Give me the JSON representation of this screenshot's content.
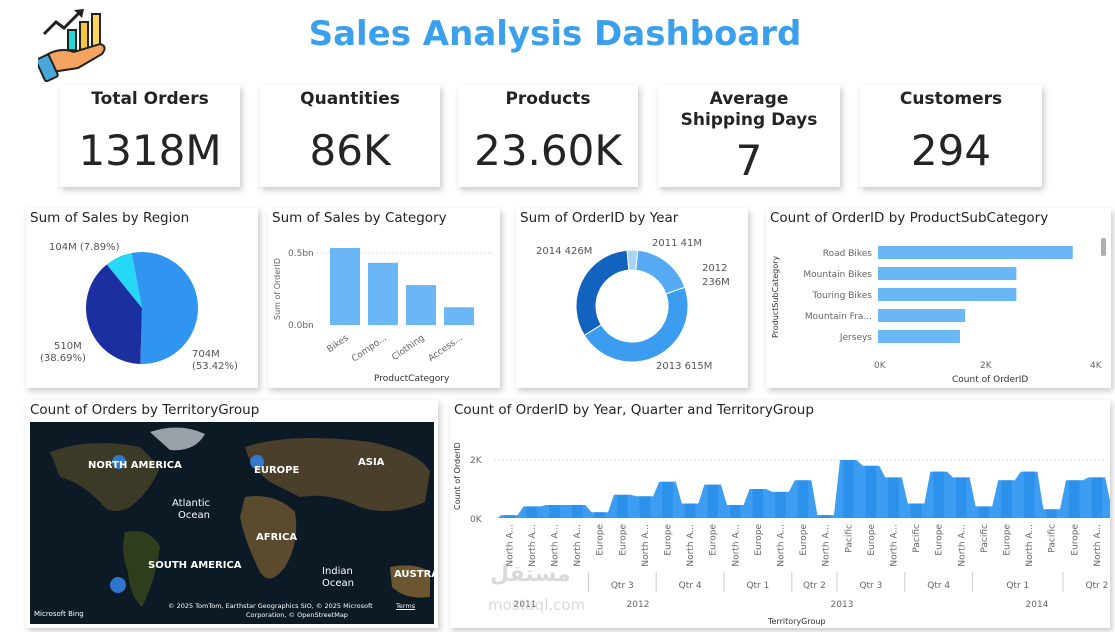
{
  "header": {
    "title": "Sales Analysis Dashboard",
    "title_color": "#3aa0ee",
    "logo_icon": "hand-growth-chart-icon"
  },
  "kpis": [
    {
      "label": "Total Orders",
      "value": "1318M"
    },
    {
      "label": "Quantities",
      "value": "86K"
    },
    {
      "label": "Products",
      "value": "23.60K"
    },
    {
      "label": "Average Shipping Days",
      "value": "7"
    },
    {
      "label": "Customers",
      "value": "294"
    }
  ],
  "region": {
    "title": "Sum of Sales by Region",
    "labels": {
      "a": "104M (7.89%)",
      "b1": "510M",
      "b2": "(38.69%)",
      "c1": "704M",
      "c2": "(53.42%)"
    }
  },
  "category": {
    "title": "Sum of Sales by Category",
    "ylabel": "Sum of OrderID",
    "xlabel": "ProductCategory",
    "ticks": [
      "0.5bn",
      "0.0bn"
    ]
  },
  "year": {
    "title": "Sum of OrderID by Year",
    "labels": {
      "y2014": "2014 426M",
      "y2011": "2011 41M",
      "y2012a": "2012",
      "y2012b": "236M",
      "y2013": "2013 615M"
    }
  },
  "subcat": {
    "title": "Count of OrderID by ProductSubCategory",
    "ylabel": "ProductSubCategory",
    "xlabel": "Count of OrderID",
    "ticks": [
      "0K",
      "2K",
      "4K"
    ]
  },
  "map": {
    "title": "Count of Orders by TerritoryGroup",
    "labels": {
      "na": "NORTH AMERICA",
      "eu": "EUROPE",
      "as": "ASIA",
      "ao1": "Atlantic",
      "ao2": "Ocean",
      "af": "AFRICA",
      "sa": "SOUTH AMERICA",
      "io1": "Indian",
      "io2": "Ocean",
      "au": "AUSTRAL",
      "bing": "Microsoft Bing",
      "credit1": "© 2025 TomTom, Earthstar Geographics SIO, © 2025 Microsoft",
      "credit2": "Corporation, © OpenStreetMap",
      "terms": "Terms"
    }
  },
  "trend": {
    "title": "Count of OrderID by Year, Quarter and TerritoryGroup",
    "ylabel": "Count of OrderID",
    "xlabel": "TerritoryGroup",
    "ticks": [
      "2K",
      "0K"
    ],
    "quarters": [
      "Qtr 3",
      "Qtr 4",
      "Qtr 1",
      "Qtr 2",
      "Qtr 3",
      "Qtr 4",
      "Qtr 1",
      "Qtr 2"
    ],
    "years": [
      "2011",
      "2012",
      "2013",
      "2014"
    ],
    "watermark1": "مستقل",
    "watermark2": "mostaql.com"
  },
  "chart_data": [
    {
      "type": "pie",
      "title": "Sum of Sales by Region",
      "labels": [
        "104M (7.89%)",
        "510M (38.69%)",
        "704M (53.42%)"
      ],
      "values": [
        104,
        510,
        704
      ],
      "colors": [
        "#25d8f5",
        "#1c2fa0",
        "#2f95f0"
      ]
    },
    {
      "type": "bar",
      "title": "Sum of Sales by Category",
      "categories": [
        "Bikes",
        "Compo...",
        "Clothing",
        "Access..."
      ],
      "values": [
        0.52,
        0.42,
        0.27,
        0.12
      ],
      "ylim": [
        0,
        0.6
      ],
      "xlabel": "ProductCategory",
      "ylabel": "Sum of OrderID",
      "color": "#6bb6f5"
    },
    {
      "type": "pie",
      "title": "Sum of OrderID by Year",
      "labels": [
        "2011",
        "2012",
        "2013",
        "2014"
      ],
      "values": [
        41,
        236,
        615,
        426
      ],
      "colors": [
        "#a9d4fa",
        "#56aaf4",
        "#3b9cf0",
        "#1262c0"
      ]
    },
    {
      "type": "bar",
      "title": "Count of OrderID by ProductSubCategory",
      "categories": [
        "Road Bikes",
        "Mountain Bikes",
        "Touring Bikes",
        "Mountain Fra...",
        "Jerseys"
      ],
      "values": [
        3.8,
        2.7,
        2.7,
        1.7,
        1.6
      ],
      "xlim": [
        0,
        4
      ],
      "xlabel": "Count of OrderID",
      "ylabel": "ProductSubCategory",
      "color": "#6bb6f5"
    },
    {
      "type": "area",
      "title": "Count of OrderID by Year, Quarter and TerritoryGroup",
      "categories": [
        "North A...",
        "North A...",
        "North A...",
        "North A...",
        "Europe",
        "Europe",
        "North A...",
        "Europe",
        "North A...",
        "Europe",
        "North A...",
        "Europe",
        "North A...",
        "Europe",
        "North A...",
        "Pacific",
        "Europe",
        "North A...",
        "Pacific",
        "Europe",
        "North A...",
        "Pacific",
        "Europe",
        "North A...",
        "Pacific",
        "Europe",
        "North A...",
        "Pacific"
      ],
      "values": [
        0.1,
        0.4,
        0.45,
        0.45,
        0.2,
        0.8,
        0.75,
        1.25,
        0.5,
        1.15,
        0.45,
        1.0,
        0.9,
        1.3,
        0.1,
        2.0,
        1.8,
        1.4,
        0.5,
        1.6,
        1.4,
        0.4,
        1.3,
        1.6,
        0.3,
        1.3,
        1.4,
        0.4
      ],
      "ylim": [
        0,
        2.5
      ],
      "ylabel": "Count of OrderID",
      "xlabel": "TerritoryGroup",
      "color": "#3d9df2"
    }
  ]
}
